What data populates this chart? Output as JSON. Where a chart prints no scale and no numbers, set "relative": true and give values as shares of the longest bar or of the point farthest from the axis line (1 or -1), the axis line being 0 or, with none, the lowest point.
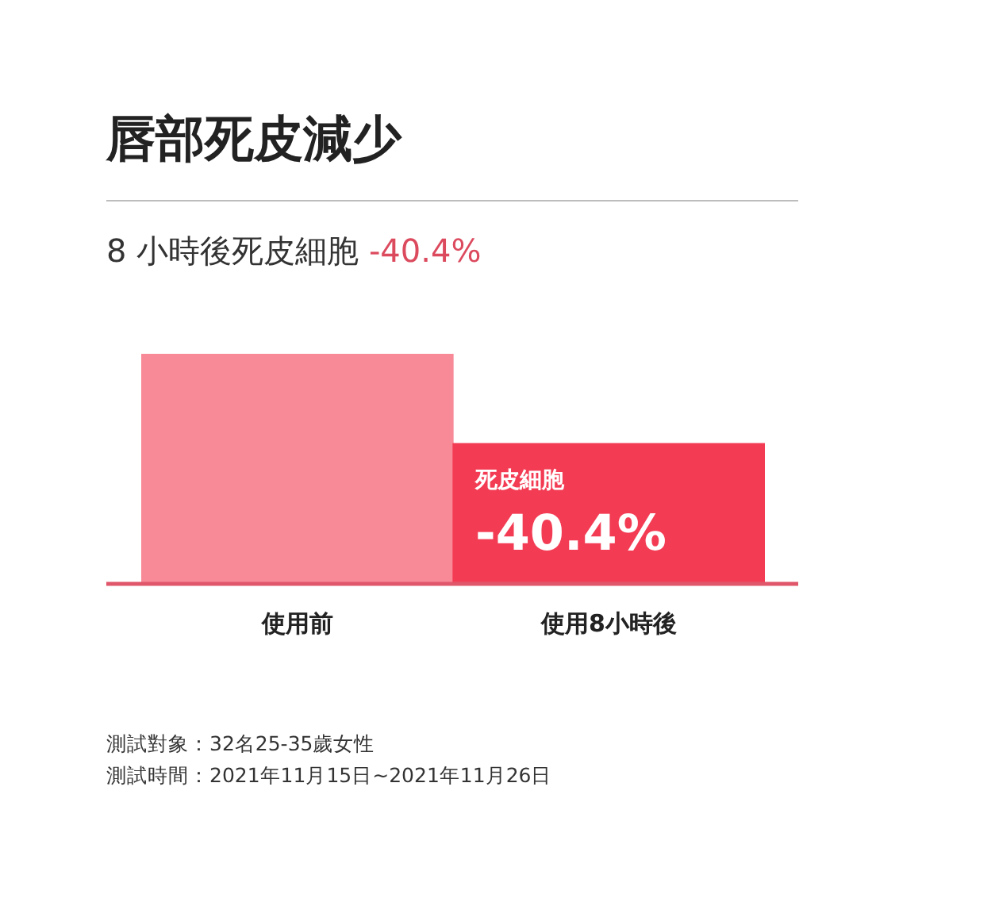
{
  "chart_data": {
    "type": "bar",
    "title": "唇部死皮減少",
    "subtitle": "8 小時後死皮細胞 -40.4%",
    "categories": [
      "使用前",
      "使用8小時後"
    ],
    "values": [
      1,
      0.61
    ],
    "colors": [
      "#f88a98",
      "#f33c54"
    ],
    "relative": true,
    "grid": false,
    "legend": false,
    "annotations": [
      {
        "text": "死皮細胞",
        "x": "使用8小時後",
        "y": 0.61
      },
      {
        "text": "-40.4%",
        "x": "使用8小時後",
        "y": 0.61
      },
      "測試對象：32名25-35歲女性",
      "測試時間：2021年11月15日~2021年11月26日"
    ]
  }
}
